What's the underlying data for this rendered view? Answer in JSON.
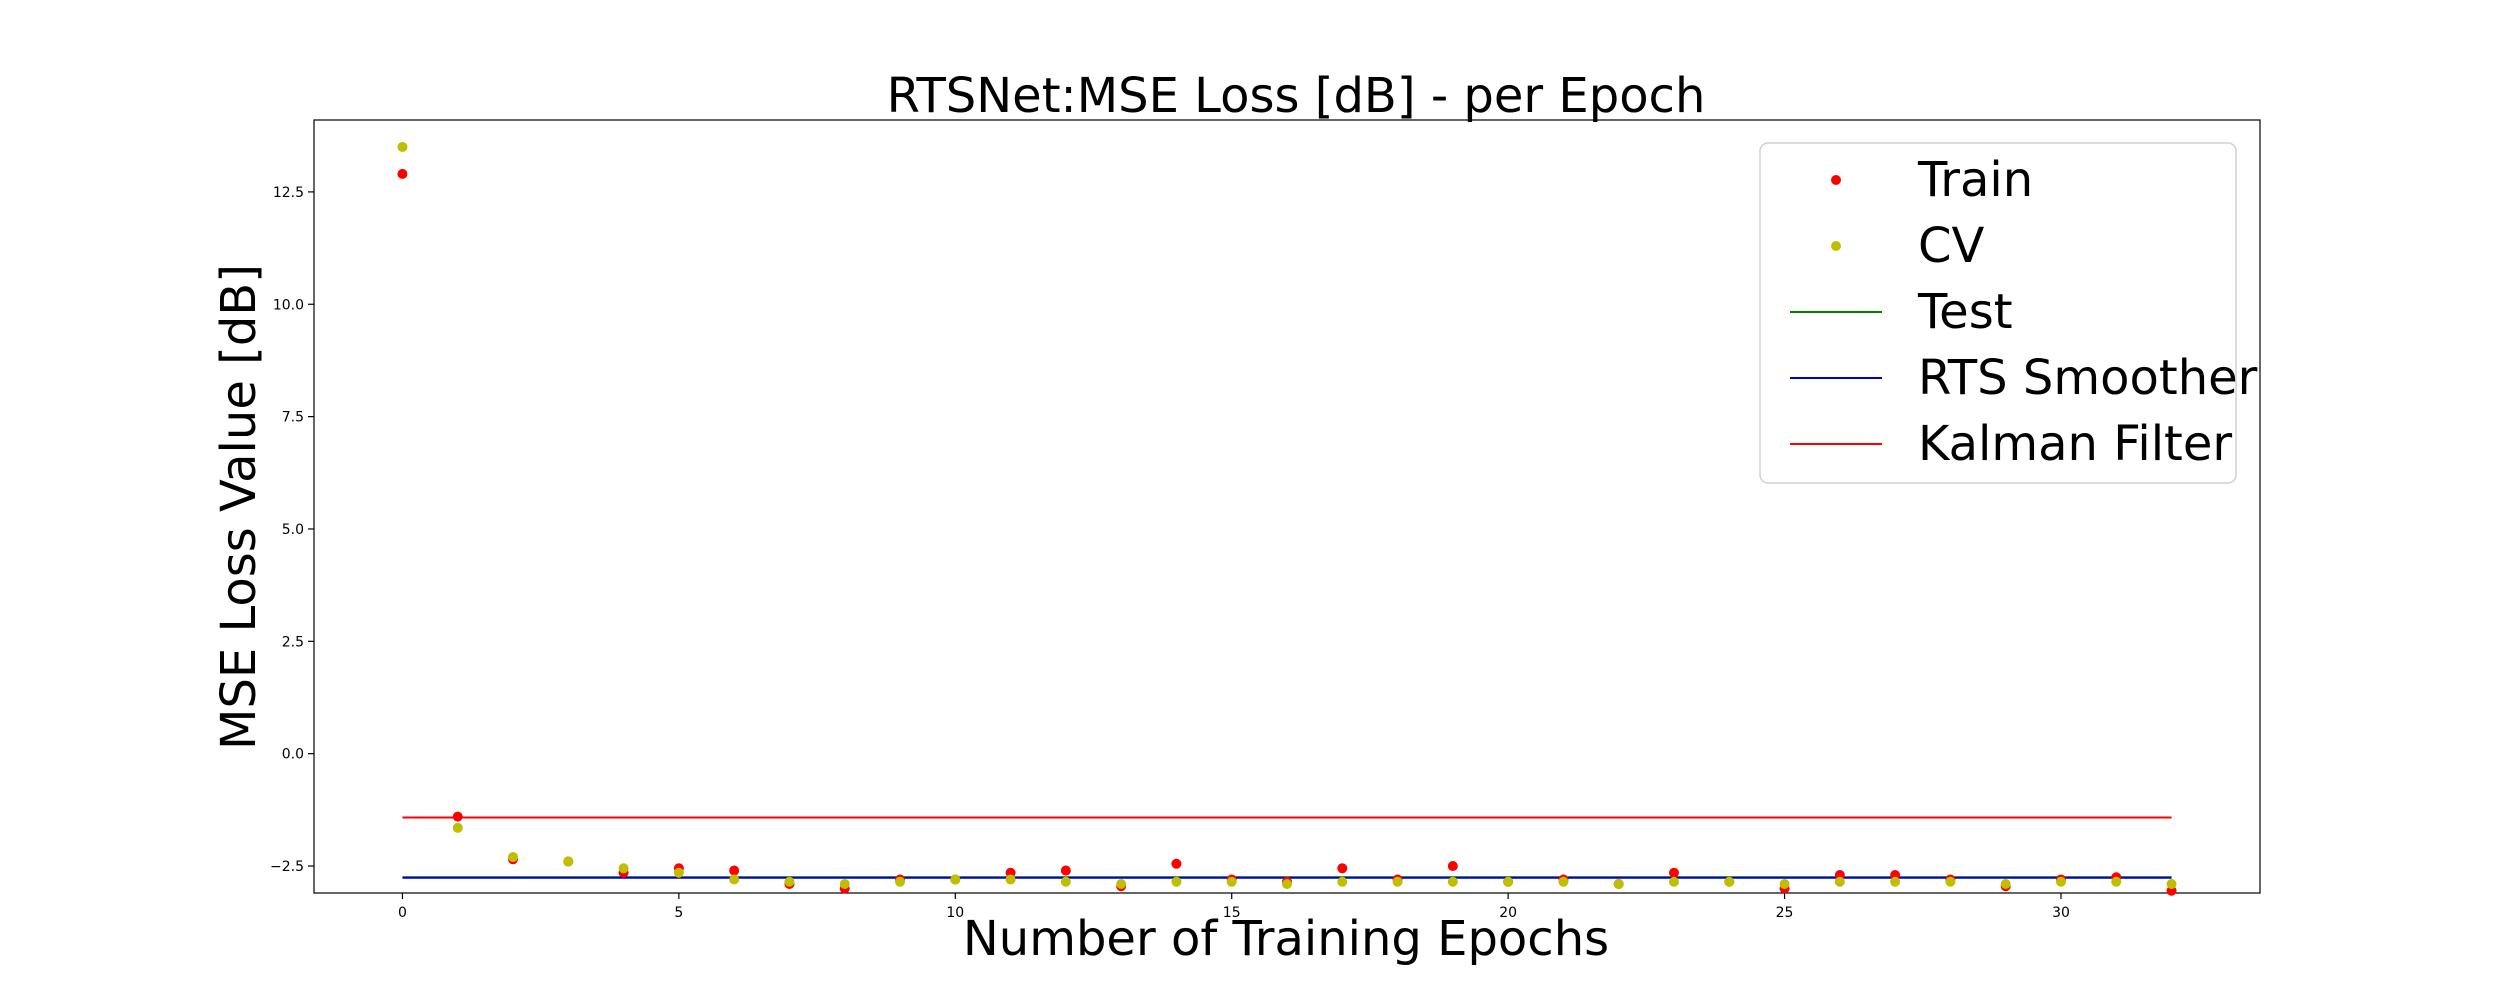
{
  "chart_data": {
    "type": "scatter",
    "title": "RTSNet:MSE Loss [dB] - per Epoch",
    "xlabel": "Number of Training Epochs",
    "ylabel": "MSE Loss Value [dB]",
    "xlim": [
      -1.6,
      33.6
    ],
    "ylim": [
      -3.1,
      14.1
    ],
    "xticks": [
      0,
      5,
      10,
      15,
      20,
      25,
      30
    ],
    "yticks": [
      -2.5,
      0.0,
      2.5,
      5.0,
      7.5,
      10.0,
      12.5
    ],
    "ytick_labels": [
      "−2.5",
      "0.0",
      "2.5",
      "5.0",
      "7.5",
      "10.0",
      "12.5"
    ],
    "grid": false,
    "legend_placement": "top-right",
    "series": [
      {
        "name": "Train",
        "kind": "points",
        "color": "#ff0000",
        "x": [
          0,
          1,
          2,
          3,
          4,
          5,
          6,
          7,
          8,
          9,
          10,
          11,
          12,
          13,
          14,
          15,
          16,
          17,
          18,
          19,
          20,
          21,
          22,
          23,
          24,
          25,
          26,
          27,
          28,
          29,
          30,
          31,
          32
        ],
        "y": [
          12.9,
          -1.4,
          -2.35,
          -2.4,
          -2.65,
          -2.55,
          -2.6,
          -2.9,
          -3.0,
          -2.8,
          -2.8,
          -2.65,
          -2.6,
          -2.95,
          -2.45,
          -2.8,
          -2.85,
          -2.55,
          -2.8,
          -2.5,
          -2.85,
          -2.8,
          -2.9,
          -2.65,
          -2.85,
          -3.0,
          -2.7,
          -2.7,
          -2.8,
          -2.95,
          -2.8,
          -2.75,
          -3.05
        ]
      },
      {
        "name": "CV",
        "kind": "points",
        "color": "#bfbf00",
        "x": [
          0,
          1,
          2,
          3,
          4,
          5,
          6,
          7,
          8,
          9,
          10,
          11,
          12,
          13,
          14,
          15,
          16,
          17,
          18,
          19,
          20,
          21,
          22,
          23,
          24,
          25,
          26,
          27,
          28,
          29,
          30,
          31,
          32
        ],
        "y": [
          13.5,
          -1.65,
          -2.3,
          -2.4,
          -2.55,
          -2.65,
          -2.8,
          -2.85,
          -2.9,
          -2.85,
          -2.8,
          -2.8,
          -2.85,
          -2.9,
          -2.85,
          -2.85,
          -2.9,
          -2.85,
          -2.85,
          -2.85,
          -2.85,
          -2.85,
          -2.9,
          -2.85,
          -2.85,
          -2.9,
          -2.85,
          -2.85,
          -2.85,
          -2.9,
          -2.85,
          -2.85,
          -2.9
        ]
      },
      {
        "name": "Test",
        "kind": "line",
        "color": "#008000",
        "x": [
          0,
          32
        ],
        "y": [
          -2.75,
          -2.75
        ]
      },
      {
        "name": "RTS Smoother",
        "kind": "line",
        "color": "#0000cc",
        "x": [
          0,
          32
        ],
        "y": [
          -2.76,
          -2.76
        ]
      },
      {
        "name": "Kalman Filter",
        "kind": "line",
        "color": "#ff0000",
        "x": [
          0,
          32
        ],
        "y": [
          -1.42,
          -1.42
        ]
      }
    ]
  }
}
